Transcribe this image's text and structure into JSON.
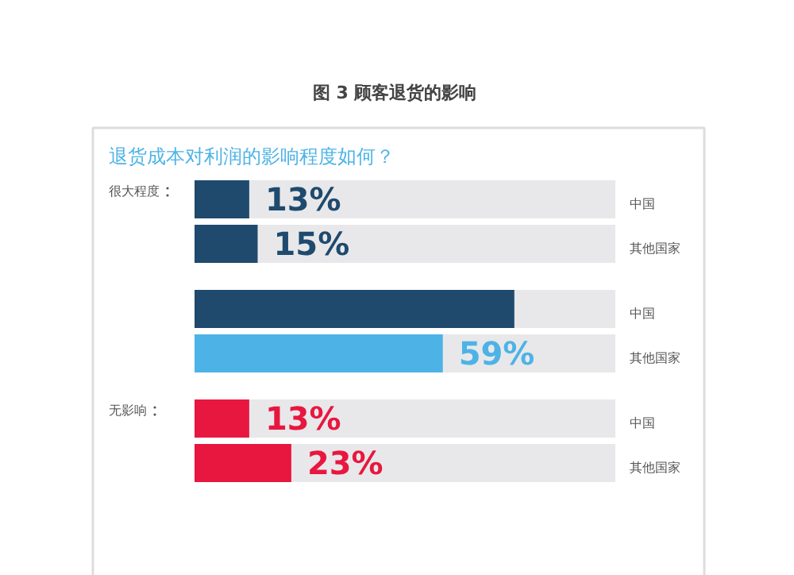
{
  "chart_data": {
    "type": "bar",
    "orientation": "horizontal",
    "title": "图 3  顾客退货的影响",
    "subtitle": "退货成本对利润的影响程度如何？",
    "categories": [
      "很大程度",
      null,
      "无影响"
    ],
    "xlim": [
      0,
      100
    ],
    "tick_labels": false,
    "grid": false,
    "series": [
      {
        "name": "中国",
        "colors": [
          "#1f4a6e",
          "#1f4a6e",
          "#e8173f"
        ],
        "values": [
          13,
          76,
          13
        ],
        "value_labels": [
          "13%",
          null,
          "13%"
        ]
      },
      {
        "name": "其他国家",
        "colors": [
          "#1f4a6e",
          "#4db3e6",
          "#e8173f"
        ],
        "values": [
          15,
          59,
          23
        ],
        "value_labels": [
          "15%",
          "59%",
          "23%"
        ]
      }
    ]
  }
}
